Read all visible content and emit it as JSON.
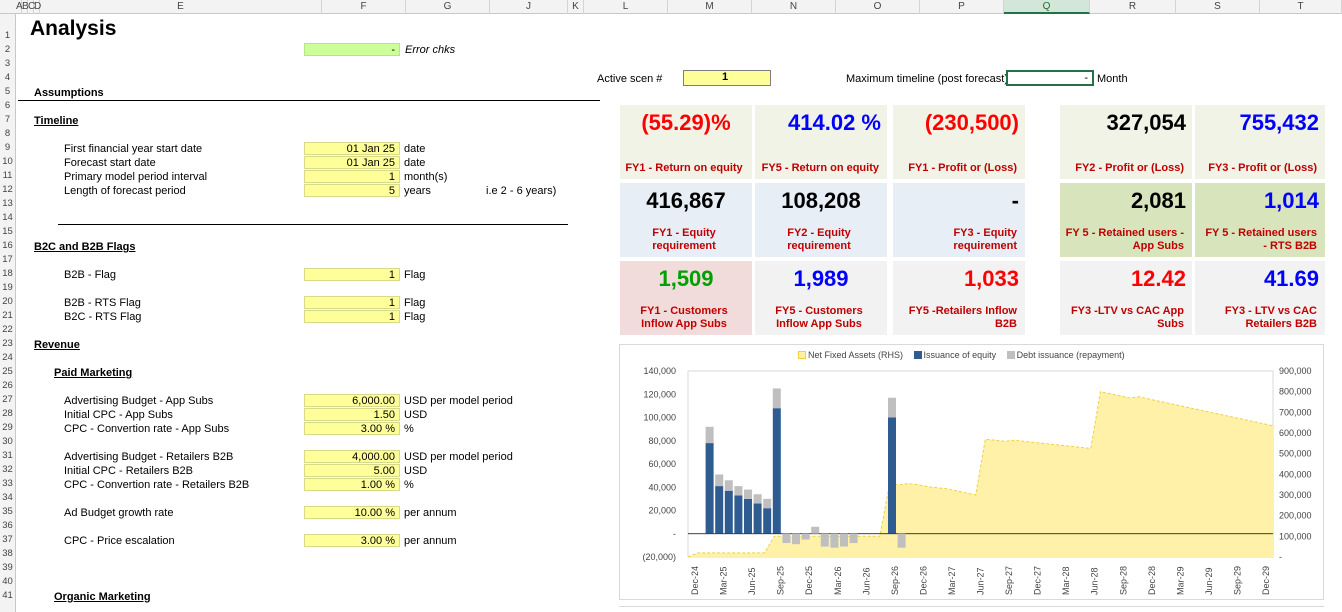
{
  "columns": [
    "A",
    "B",
    "C",
    "D",
    "E",
    "F",
    "G",
    "J",
    "K",
    "L",
    "M",
    "N",
    "O",
    "P",
    "Q",
    "R",
    "S",
    "T"
  ],
  "rows": [
    "1",
    "2",
    "3",
    "4",
    "5",
    "6",
    "7",
    "8",
    "9",
    "10",
    "11",
    "12",
    "13",
    "14",
    "15",
    "16",
    "17",
    "18",
    "19",
    "20",
    "21",
    "22",
    "23",
    "24",
    "25",
    "26",
    "27",
    "28",
    "29",
    "30",
    "31",
    "32",
    "33",
    "34",
    "35",
    "36",
    "37",
    "38",
    "39",
    "40",
    "41"
  ],
  "title": "Analysis",
  "error_check": {
    "value": "-",
    "label": "Error chks"
  },
  "active_scen": {
    "label": "Active scen #",
    "value": "1"
  },
  "max_timeline": {
    "label": "Maximum timeline (post forecast)",
    "value": "-",
    "unit": "Month"
  },
  "assumptions": {
    "heading": "Assumptions",
    "timeline": {
      "heading": "Timeline",
      "items": [
        {
          "label": "First financial year start date",
          "value": "01 Jan 25",
          "unit": "date"
        },
        {
          "label": "Forecast start date",
          "value": "01 Jan 25",
          "unit": "date"
        },
        {
          "label": "Primary model period interval",
          "value": "1",
          "unit": "month(s)"
        },
        {
          "label": "Length of forecast period",
          "value": "5",
          "unit": "years",
          "note": "i.e  2 - 6 years)"
        }
      ]
    },
    "flags": {
      "heading": "B2C and B2B Flags",
      "items": [
        {
          "label": "B2B - Flag",
          "value": "1",
          "unit": "Flag"
        },
        {
          "label": "B2B - RTS Flag",
          "value": "1",
          "unit": "Flag"
        },
        {
          "label": "B2C - RTS Flag",
          "value": "1",
          "unit": "Flag"
        }
      ]
    },
    "revenue": {
      "heading": "Revenue",
      "paid_heading": "Paid Marketing",
      "items": [
        {
          "label": "Advertising Budget - App Subs",
          "value": "6,000.00",
          "unit": "USD per model period"
        },
        {
          "label": "Initial CPC - App Subs",
          "value": "1.50",
          "unit": "USD"
        },
        {
          "label": "CPC - Convertion rate - App Subs",
          "value": "3.00 %",
          "unit": "%"
        },
        {
          "label": "Advertising Budget - Retailers B2B",
          "value": "4,000.00",
          "unit": "USD per model period"
        },
        {
          "label": "Initial CPC - Retailers B2B",
          "value": "5.00",
          "unit": "USD"
        },
        {
          "label": "CPC - Convertion rate - Retailers B2B",
          "value": "1.00 %",
          "unit": "%"
        },
        {
          "label": "Ad Budget growth rate",
          "value": "10.00 %",
          "unit": "per annum"
        },
        {
          "label": "CPC - Price escalation",
          "value": "3.00 %",
          "unit": "per annum"
        }
      ],
      "organic_heading": "Organic Marketing"
    }
  },
  "kpis": [
    {
      "value": "(55.29)%",
      "label": "FY1 - Return on equity",
      "color": "#ff0000",
      "bg": "#f1f3e6"
    },
    {
      "value": "414.02 %",
      "label": "FY5 - Return on equity",
      "color": "#0000ff",
      "bg": "#f1f3e6"
    },
    {
      "value": "(230,500)",
      "label": "FY1 - Profit or (Loss)",
      "color": "#ff0000",
      "bg": "#f1f3e6"
    },
    {
      "value": "327,054",
      "label": "FY2 - Profit or (Loss)",
      "color": "#000000",
      "bg": "#f1f3e6"
    },
    {
      "value": "755,432",
      "label": "FY3 - Profit or (Loss)",
      "color": "#0000ff",
      "bg": "#f1f3e6"
    },
    {
      "value": "416,867",
      "label": "FY1 - Equity requirement",
      "color": "#000000",
      "bg": "#e8eef5"
    },
    {
      "value": "108,208",
      "label": "FY2 - Equity requirement",
      "color": "#000000",
      "bg": "#e8eef5"
    },
    {
      "value": "-",
      "label": "FY3 - Equity requirement",
      "color": "#000000",
      "bg": "#e8eef5"
    },
    {
      "value": "2,081",
      "label": "FY 5 - Retained users - App Subs",
      "color": "#000000",
      "bg": "#d8e4bc"
    },
    {
      "value": "1,014",
      "label": "FY 5 - Retained users - RTS B2B",
      "color": "#0000ff",
      "bg": "#d8e4bc"
    },
    {
      "value": "1,509",
      "label": "FY1 - Customers Inflow App Subs",
      "color": "#00a000",
      "bg": "#f2dcdb"
    },
    {
      "value": "1,989",
      "label": "FY5 - Customers Inflow App Subs",
      "color": "#0000ff",
      "bg": "#f2f2f2"
    },
    {
      "value": "1,033",
      "label": "FY5 -Retailers Inflow B2B",
      "color": "#ff0000",
      "bg": "#f2f2f2"
    },
    {
      "value": "12.42",
      "label": "FY3 -LTV vs CAC App Subs",
      "color": "#ff0000",
      "bg": "#f2f2f2"
    },
    {
      "value": "41.69",
      "label": "FY3 - LTV vs CAC Retailers B2B",
      "color": "#0000ff",
      "bg": "#f2f2f2"
    }
  ],
  "chart_data": {
    "type": "bar",
    "legend": [
      "Net Fixed Assets (RHS)",
      "Issuance of equity",
      "Debt issuance (repayment)"
    ],
    "colors": {
      "nfa": "#fff2a8",
      "nfa_line": "#f0d040",
      "equity": "#2e5c91",
      "debt": "#bfbfbf"
    },
    "x_ticks": [
      "Dec-24",
      "Mar-25",
      "Jun-25",
      "Sep-25",
      "Dec-25",
      "Mar-26",
      "Jun-26",
      "Sep-26",
      "Dec-26",
      "Mar-27",
      "Jun-27",
      "Sep-27",
      "Dec-27",
      "Mar-28",
      "Jun-28",
      "Sep-28",
      "Dec-28",
      "Mar-29",
      "Jun-29",
      "Sep-29",
      "Dec-29"
    ],
    "y_left_ticks": [
      "140,000",
      "120,000",
      "100,000",
      "80,000",
      "60,000",
      "40,000",
      "20,000",
      "-",
      "(20,000)"
    ],
    "y_right_ticks": [
      "900,000",
      "800,000",
      "700,000",
      "600,000",
      "500,000",
      "400,000",
      "300,000",
      "200,000",
      "100,000",
      "-"
    ],
    "ylim_left": [
      -20000,
      140000
    ],
    "ylim_right": [
      0,
      900000
    ],
    "equity": [
      0,
      78000,
      41000,
      37000,
      33000,
      30000,
      26000,
      22000,
      108000,
      0,
      0,
      0,
      0,
      0,
      0,
      0,
      0,
      0,
      0,
      0,
      100000,
      0
    ],
    "debt": [
      0,
      14000,
      10000,
      9000,
      8000,
      8000,
      8000,
      8000,
      17000,
      -8000,
      -9000,
      -5000,
      6000,
      -11000,
      -12000,
      -11000,
      -8000,
      0,
      0,
      0,
      17000,
      -12000
    ],
    "nfa": [
      0,
      20000,
      20000,
      20000,
      20000,
      20000,
      20000,
      20000,
      20000,
      100000,
      100000,
      100000,
      100000,
      100000,
      100000,
      100000,
      100000,
      100000,
      100000,
      100000,
      100000,
      350000,
      350000,
      355000,
      350000,
      340000,
      335000,
      330000,
      320000,
      310000,
      300000,
      570000,
      565000,
      560000,
      565000,
      560000,
      555000,
      550000,
      545000,
      540000,
      535000,
      530000,
      525000,
      800000,
      790000,
      780000,
      770000,
      775000,
      765000,
      755000,
      745000,
      735000,
      725000,
      715000,
      705000,
      695000,
      685000,
      675000,
      665000,
      655000,
      645000,
      635000
    ]
  }
}
